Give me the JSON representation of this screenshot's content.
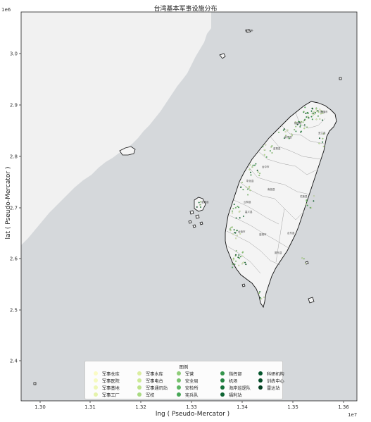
{
  "title": "台湾基本军事设施分布",
  "x_axis": {
    "label": "lng ( Pseudo-Mercator )",
    "exponent": "1e7",
    "ticks": [
      "1.30",
      "1.31",
      "1.32",
      "1.33",
      "1.34",
      "1.35",
      "1.36"
    ]
  },
  "y_axis": {
    "label": "lat ( Pseudo-Mercator )",
    "exponent": "1e6",
    "ticks": [
      "3.0",
      "2.9",
      "2.8",
      "2.7",
      "2.6",
      "2.5",
      "2.4"
    ]
  },
  "map_labels": [
    {
      "id": "mazu",
      "text": "东引乡"
    },
    {
      "id": "city1",
      "text": "基隆市"
    },
    {
      "id": "city2",
      "text": "宜兰县"
    },
    {
      "id": "city3",
      "text": "新竹县"
    },
    {
      "id": "city4",
      "text": "苗栗县"
    },
    {
      "id": "city5",
      "text": "台中市"
    },
    {
      "id": "city6",
      "text": "彰化县"
    },
    {
      "id": "city7",
      "text": "南投县"
    },
    {
      "id": "city8",
      "text": "花莲县"
    },
    {
      "id": "city9",
      "text": "云林县"
    },
    {
      "id": "city10",
      "text": "嘉义县"
    },
    {
      "id": "city11",
      "text": "台南市"
    },
    {
      "id": "city12",
      "text": "高雄市"
    },
    {
      "id": "city13",
      "text": "台东县"
    },
    {
      "id": "city14",
      "text": "屏东县"
    },
    {
      "id": "city15",
      "text": "澎湖县"
    },
    {
      "id": "city16",
      "text": "桃园市"
    }
  ],
  "colors": {
    "sea": "#d5d8db",
    "mainland": "#f1f1f1",
    "taiwan": "#f4f4f4",
    "outline": "#111111"
  },
  "legend": {
    "title": "图例",
    "items": [
      {
        "label": "军事仓库",
        "color": "#fafbc4"
      },
      {
        "label": "军事医院",
        "color": "#f5fac0"
      },
      {
        "label": "军事基地",
        "color": "#eef7b5"
      },
      {
        "label": "军事工厂",
        "color": "#e5f3ab"
      },
      {
        "label": "军事水库",
        "color": "#dbee9f"
      },
      {
        "label": "军事电台",
        "color": "#ccea95"
      },
      {
        "label": "军事通讯站",
        "color": "#bde38b"
      },
      {
        "label": "军校",
        "color": "#a9da82"
      },
      {
        "label": "军营",
        "color": "#8fcd79"
      },
      {
        "label": "安全局",
        "color": "#76c16d"
      },
      {
        "label": "安检所",
        "color": "#5db562"
      },
      {
        "label": "宪兵队",
        "color": "#47a656"
      },
      {
        "label": "指挥部",
        "color": "#35954c"
      },
      {
        "label": "机场",
        "color": "#268443"
      },
      {
        "label": "海岸巡逻队",
        "color": "#16723a"
      },
      {
        "label": "福利站",
        "color": "#0e6433"
      },
      {
        "label": "科研机构",
        "color": "#06562d"
      },
      {
        "label": "训练中心",
        "color": "#044c27"
      },
      {
        "label": "雷达站",
        "color": "#033f20"
      }
    ]
  }
}
